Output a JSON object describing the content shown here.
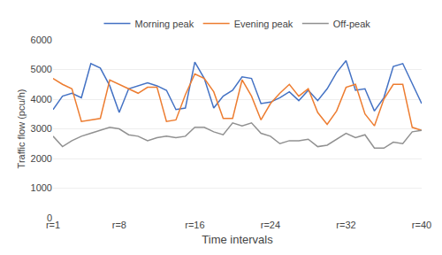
{
  "chart_data": {
    "type": "line",
    "xlabel": "Time intervals",
    "ylabel": "Traffic flow (pcu/h)",
    "x": [
      1,
      2,
      3,
      4,
      5,
      6,
      7,
      8,
      9,
      10,
      11,
      12,
      13,
      14,
      15,
      16,
      17,
      18,
      19,
      20,
      21,
      22,
      23,
      24,
      25,
      26,
      27,
      28,
      29,
      30,
      31,
      32,
      33,
      34,
      35,
      36,
      37,
      38,
      39,
      40
    ],
    "series": [
      {
        "name": "Morning peak",
        "color": "#4472C4",
        "values": [
          3650,
          4100,
          4200,
          4050,
          5200,
          5050,
          4450,
          3550,
          4350,
          4450,
          4550,
          4450,
          4300,
          3650,
          3700,
          5250,
          4700,
          3700,
          4100,
          4300,
          4750,
          4700,
          3850,
          3900,
          4050,
          4250,
          3950,
          4300,
          3950,
          4350,
          4900,
          5300,
          4300,
          4350,
          3600,
          4050,
          5100,
          5200,
          4500,
          3850
        ]
      },
      {
        "name": "Evening peak",
        "color": "#ED7D31",
        "values": [
          4700,
          4500,
          4350,
          3250,
          3300,
          3350,
          4650,
          4500,
          4350,
          4200,
          4400,
          4400,
          3250,
          3300,
          4150,
          4850,
          4700,
          4250,
          3350,
          3350,
          4650,
          4100,
          3300,
          3850,
          4200,
          4500,
          4100,
          4350,
          3550,
          3150,
          3600,
          4400,
          4500,
          3500,
          3100,
          4000,
          4500,
          4500,
          3050,
          2950
        ]
      },
      {
        "name": "Off-peak",
        "color": "#919191",
        "values": [
          2750,
          2400,
          2600,
          2750,
          2850,
          2950,
          3050,
          3000,
          2800,
          2750,
          2600,
          2700,
          2750,
          2700,
          2750,
          3050,
          3050,
          2900,
          2800,
          3200,
          3100,
          3200,
          2850,
          2750,
          2500,
          2600,
          2600,
          2650,
          2400,
          2450,
          2650,
          2850,
          2700,
          2800,
          2350,
          2350,
          2550,
          2500,
          2900,
          2950
        ]
      }
    ],
    "xlim": [
      1,
      40
    ],
    "xticks": [
      {
        "value": 1,
        "label": "r=1"
      },
      {
        "value": 8,
        "label": "r=8"
      },
      {
        "value": 16,
        "label": "r=16"
      },
      {
        "value": 24,
        "label": "r=24"
      },
      {
        "value": 32,
        "label": "r=32"
      },
      {
        "value": 40,
        "label": "r=40"
      }
    ],
    "ylim": [
      0,
      6000
    ],
    "yticks": [
      0,
      1000,
      2000,
      3000,
      4000,
      5000,
      6000
    ],
    "grid": true,
    "legend": "top"
  }
}
